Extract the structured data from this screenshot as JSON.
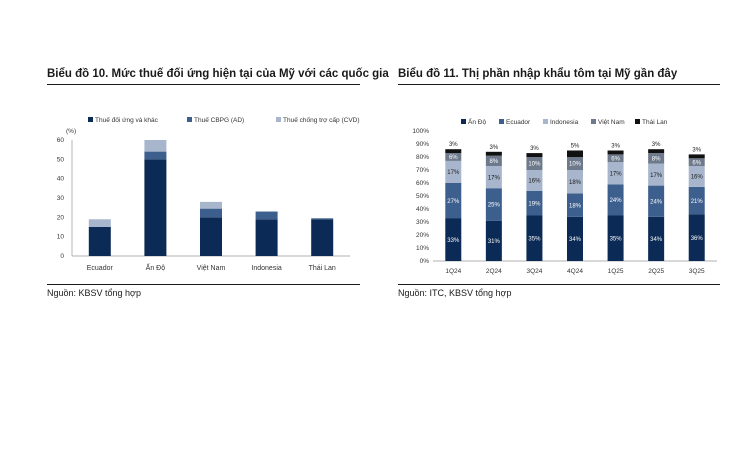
{
  "chart_data": [
    {
      "type": "bar",
      "title": "Biểu đồ 10. Mức thuế đối ứng hiện tại của Mỹ với các quốc gia",
      "unit_label": "(%)",
      "categories": [
        "Ecuador",
        "Ấn Độ",
        "Việt Nam",
        "Indonesia",
        "Thái Lan"
      ],
      "stacked": true,
      "series": [
        {
          "name": "Thuế đối ứng và khác",
          "values": [
            15,
            50,
            20,
            19,
            19
          ],
          "color": "#0b2a55"
        },
        {
          "name": "Thuế CBPG (AD)",
          "values": [
            0,
            4,
            4.5,
            4,
            0.5
          ],
          "color": "#3d5f8e"
        },
        {
          "name": "Thuế chống trợ cấp (CVD)",
          "values": [
            4,
            6,
            3.5,
            0,
            0
          ],
          "color": "#a7b6cc"
        }
      ],
      "ylim": [
        0,
        60
      ],
      "yticks": [
        0,
        10,
        20,
        30,
        40,
        50,
        60
      ],
      "legend_position": "top",
      "source": "Nguồn: KBSV tổng hợp"
    },
    {
      "type": "bar",
      "title": "Biểu đồ 11. Thị phần nhập khẩu tôm tại Mỹ gần đây",
      "categories": [
        "1Q24",
        "2Q24",
        "3Q24",
        "4Q24",
        "1Q25",
        "2Q25",
        "3Q25"
      ],
      "stacked": true,
      "percent": true,
      "series": [
        {
          "name": "Ấn Độ",
          "values": [
            33,
            31,
            35,
            34,
            35,
            34,
            36
          ],
          "color": "#0b2a55"
        },
        {
          "name": "Ecuador",
          "values": [
            27,
            25,
            19,
            18,
            24,
            24,
            21
          ],
          "color": "#3d5f8e"
        },
        {
          "name": "Indonesia",
          "values": [
            17,
            17,
            16,
            18,
            17,
            17,
            16
          ],
          "color": "#a7b6cc"
        },
        {
          "name": "Việt Nam",
          "values": [
            6,
            8,
            10,
            10,
            6,
            8,
            6
          ],
          "color": "#6e7a8c"
        },
        {
          "name": "Thái Lan",
          "values": [
            3,
            3,
            3,
            5,
            3,
            3,
            3
          ],
          "color": "#111111"
        }
      ],
      "data_labels": [
        [
          "33%",
          "27%",
          "17%",
          "6%",
          "3%"
        ],
        [
          "31%",
          "25%",
          "17%",
          "8%",
          "3%"
        ],
        [
          "35%",
          "19%",
          "16%",
          "10%",
          "3%"
        ],
        [
          "34%",
          "18%",
          "18%",
          "10%",
          "5%"
        ],
        [
          "35%",
          "24%",
          "17%",
          "6%",
          "3%"
        ],
        [
          "34%",
          "24%",
          "17%",
          "8%",
          "3%"
        ],
        [
          "36%",
          "21%",
          "16%",
          "6%",
          "3%"
        ]
      ],
      "ylim": [
        0,
        100
      ],
      "yticks": [
        "0%",
        "10%",
        "20%",
        "30%",
        "40%",
        "50%",
        "60%",
        "70%",
        "80%",
        "90%",
        "100%"
      ],
      "legend_position": "top",
      "source": "Nguồn: ITC, KBSV tổng hợp"
    }
  ]
}
